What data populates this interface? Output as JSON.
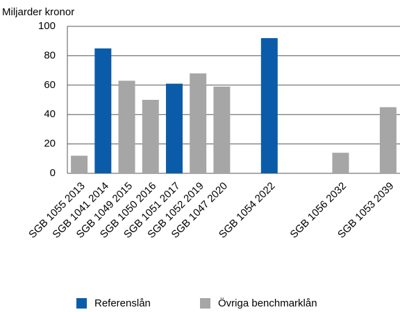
{
  "chart_data": {
    "type": "bar",
    "y_label": "Miljarder kronor",
    "categories": [
      "SGB 1055 2013",
      "SGB 1041 2014",
      "SGB 1049 2015",
      "SGB 1050 2016",
      "SGB 1051 2017",
      "SGB 1052 2019",
      "SGB 1047 2020",
      null,
      "SGB 1054 2022",
      null,
      null,
      "SGB 1056 2032",
      null,
      "SGB 1053 2039"
    ],
    "series": [
      {
        "name": "Referenslån",
        "color": "#0b5ca8",
        "values": [
          null,
          85,
          null,
          null,
          61,
          null,
          null,
          null,
          92,
          null,
          null,
          null,
          null,
          null
        ]
      },
      {
        "name": "Övriga benchmarklån",
        "color": "#a6a6a6",
        "values": [
          12,
          null,
          63,
          50,
          null,
          68,
          59,
          null,
          null,
          null,
          null,
          14,
          null,
          45
        ]
      }
    ],
    "ylim": [
      0,
      100
    ],
    "yticks": [
      0,
      20,
      40,
      60,
      80,
      100
    ],
    "grid": true,
    "legend": "bottom"
  }
}
